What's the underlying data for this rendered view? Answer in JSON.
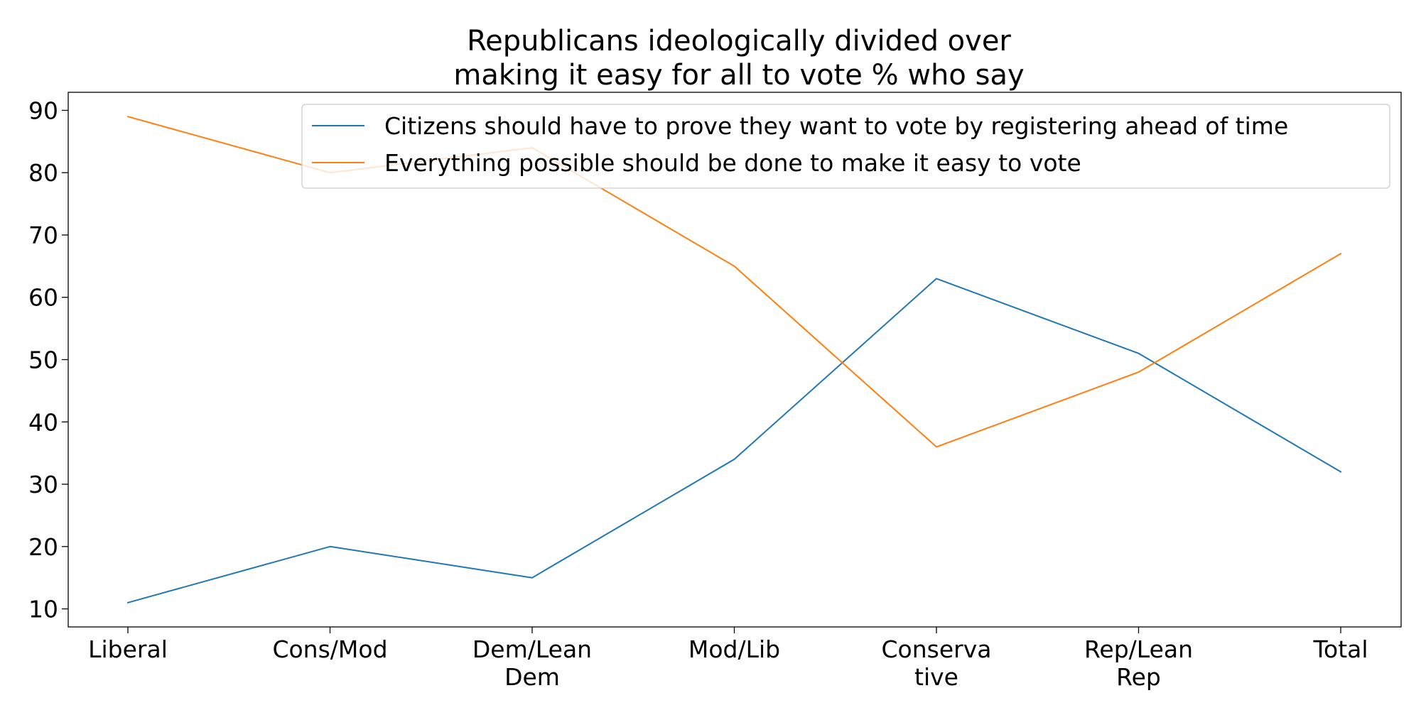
{
  "chart_data": {
    "type": "line",
    "title": "Republicans ideologically divided over making it easy for all to vote % who say",
    "title_lines": [
      "Republicans ideologically divided over",
      "making it easy for all to vote % who say"
    ],
    "xlabel": "",
    "ylabel": "",
    "categories": [
      "Liberal",
      "Cons/Mod",
      "Dem/Lean Dem",
      "Mod/Lib",
      "Conservative",
      "Rep/Lean Rep",
      "Total"
    ],
    "category_labels": [
      [
        "Liberal"
      ],
      [
        "Cons/Mod"
      ],
      [
        "Dem/Lean",
        "Dem"
      ],
      [
        "Mod/Lib"
      ],
      [
        "Conserva",
        "tive"
      ],
      [
        "Rep/Lean",
        "Rep"
      ],
      [
        "Total"
      ]
    ],
    "series": [
      {
        "name": "Citizens should have to prove they want to vote by registering ahead of time",
        "color": "#1f77b4",
        "values": [
          11,
          20,
          15,
          34,
          63,
          51,
          32
        ]
      },
      {
        "name": "Everything possible should be done to make it easy to vote",
        "color": "#ff7f0e",
        "values": [
          89,
          80,
          84,
          65,
          36,
          48,
          67
        ]
      }
    ],
    "yticks": [
      10,
      20,
      30,
      40,
      50,
      60,
      70,
      80,
      90
    ],
    "ylim": [
      7.1,
      92.9
    ],
    "grid": false,
    "legend_position": "top-right"
  }
}
